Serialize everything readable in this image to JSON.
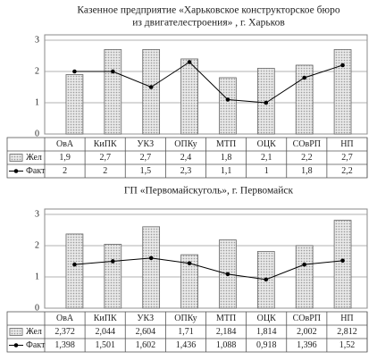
{
  "chart_data": [
    {
      "type": "bar-line",
      "title": [
        "Казенное предприятие «Харьковское конструкторское бюро",
        "из двигателестроения» , г. Харьков"
      ],
      "categories": [
        "ОвА",
        "КиПК",
        "УКЗ",
        "ОПКу",
        "МТП",
        "ОЦК",
        "СОвРП",
        "НП"
      ],
      "series": [
        {
          "name": "Жел",
          "type": "bar",
          "color": "#bdbdbd",
          "values": [
            1.9,
            2.7,
            2.7,
            2.4,
            1.8,
            2.1,
            2.2,
            2.7
          ],
          "value_labels": [
            "1,9",
            "2,7",
            "2,7",
            "2,4",
            "1,8",
            "2,1",
            "2,2",
            "2,7"
          ]
        },
        {
          "name": "Факт",
          "type": "line",
          "color": "#000000",
          "values": [
            2,
            2,
            1.5,
            2.3,
            1.1,
            1,
            1.8,
            2.2
          ],
          "value_labels": [
            "2",
            "2",
            "1,5",
            "2,3",
            "1,1",
            "1",
            "1,8",
            "2,2"
          ]
        }
      ],
      "ylim": [
        0,
        3
      ],
      "yticks": [
        0,
        1,
        2,
        3
      ],
      "grid": true
    },
    {
      "type": "bar-line",
      "title": [
        "ГП «Первомайскуголь», г. Первомайск"
      ],
      "categories": [
        "ОвА",
        "КиПК",
        "УКЗ",
        "ОПКу",
        "МТП",
        "ОЦК",
        "СОвРП",
        "НП"
      ],
      "series": [
        {
          "name": "Жел",
          "type": "bar",
          "color": "#bdbdbd",
          "values": [
            2.372,
            2.044,
            2.604,
            1.71,
            2.184,
            1.814,
            2.002,
            2.812
          ],
          "value_labels": [
            "2,372",
            "2,044",
            "2,604",
            "1,71",
            "2,184",
            "1,814",
            "2,002",
            "2,812"
          ]
        },
        {
          "name": "Факт",
          "type": "line",
          "color": "#000000",
          "values": [
            1.398,
            1.501,
            1.602,
            1.436,
            1.088,
            0.918,
            1.396,
            1.52
          ],
          "value_labels": [
            "1,398",
            "1,501",
            "1,602",
            "1,436",
            "1,088",
            "0,918",
            "1,396",
            "1,52"
          ]
        }
      ],
      "ylim": [
        0,
        3
      ],
      "yticks": [
        0,
        1,
        2,
        3
      ],
      "grid": true
    }
  ]
}
